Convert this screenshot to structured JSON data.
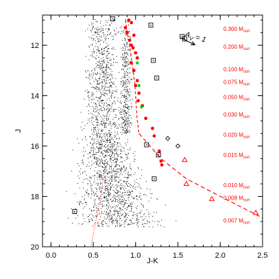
{
  "colors": {
    "field_stars": "#000000",
    "members": "#ff0000",
    "green": "#00cc00",
    "isochrone": "#ff0000",
    "axes": "#000000"
  },
  "chart_data": {
    "type": "scatter",
    "title": "",
    "xlabel": "J-K",
    "ylabel": "J",
    "xlim": [
      -0.1,
      2.5
    ],
    "ylim": [
      20,
      10.8
    ],
    "y_inverted": true,
    "grid": false,
    "x_ticks": [
      "0.0",
      "0.5",
      "1.0",
      "1.5",
      "2.0",
      "2.5"
    ],
    "y_ticks": [
      "12",
      "14",
      "16",
      "18",
      "20"
    ],
    "field_stars": {
      "description_of_density": "dense black swarm, two main branches",
      "regions": [
        {
          "j": [
            10.9,
            13
          ],
          "x": [
            0.35,
            1.0
          ]
        },
        {
          "j": [
            13,
            16
          ],
          "x": [
            0.3,
            1.1
          ]
        },
        {
          "j": [
            16,
            18.8
          ],
          "x": [
            0.2,
            1.4
          ]
        },
        {
          "j": [
            18.8,
            19.2
          ],
          "x": [
            0.3,
            1.45
          ]
        }
      ]
    },
    "members_red": [
      {
        "x": 0.92,
        "y": 11.0
      },
      {
        "x": 0.95,
        "y": 11.1
      },
      {
        "x": 0.88,
        "y": 11.3
      },
      {
        "x": 0.9,
        "y": 11.5
      },
      {
        "x": 0.98,
        "y": 11.6
      },
      {
        "x": 0.93,
        "y": 11.8
      },
      {
        "x": 0.95,
        "y": 12.0
      },
      {
        "x": 0.97,
        "y": 12.1
      },
      {
        "x": 1.0,
        "y": 12.3
      },
      {
        "x": 1.02,
        "y": 12.5
      },
      {
        "x": 0.95,
        "y": 12.7
      },
      {
        "x": 0.98,
        "y": 13.0
      },
      {
        "x": 1.02,
        "y": 13.4
      },
      {
        "x": 1.0,
        "y": 13.6
      },
      {
        "x": 1.04,
        "y": 13.9
      },
      {
        "x": 1.03,
        "y": 14.2
      },
      {
        "x": 1.08,
        "y": 14.4
      },
      {
        "x": 1.12,
        "y": 14.9
      },
      {
        "x": 1.2,
        "y": 15.3
      },
      {
        "x": 1.22,
        "y": 15.6
      },
      {
        "x": 1.28,
        "y": 16.2
      },
      {
        "x": 1.3,
        "y": 16.6
      },
      {
        "x": 1.31,
        "y": 16.75
      }
    ],
    "members_green": [
      {
        "x": 1.02,
        "y": 12.7
      },
      {
        "x": 1.04,
        "y": 13.6
      },
      {
        "x": 1.07,
        "y": 14.45
      }
    ],
    "open_squares": [
      {
        "x": 0.73,
        "y": 10.95
      },
      {
        "x": 1.18,
        "y": 11.2
      },
      {
        "x": 1.55,
        "y": 11.65
      },
      {
        "x": 1.58,
        "y": 11.75
      },
      {
        "x": 1.21,
        "y": 12.6
      },
      {
        "x": 1.25,
        "y": 13.3
      },
      {
        "x": 1.13,
        "y": 15.95
      },
      {
        "x": 1.27,
        "y": 16.35
      },
      {
        "x": 1.22,
        "y": 17.3
      },
      {
        "x": 0.28,
        "y": 18.6
      }
    ],
    "open_diamonds": [
      {
        "x": 1.38,
        "y": 15.7
      },
      {
        "x": 1.5,
        "y": 16.0
      }
    ],
    "open_triangles": [
      {
        "x": 1.58,
        "y": 16.55
      },
      {
        "x": 1.6,
        "y": 17.5
      },
      {
        "x": 1.9,
        "y": 18.1
      },
      {
        "x": 2.42,
        "y": 18.65
      }
    ],
    "reddening_vector": {
      "label": "AV = 1",
      "label_text": "A",
      "label_sub": "V",
      "label_rest": " = 1",
      "from": {
        "x": 1.53,
        "y": 11.7
      },
      "to": {
        "x": 1.7,
        "y": 11.98
      }
    },
    "isochrone_main": [
      {
        "x": 0.88,
        "y": 11.0
      },
      {
        "x": 0.9,
        "y": 11.5
      },
      {
        "x": 0.93,
        "y": 12.0
      },
      {
        "x": 0.95,
        "y": 12.5
      },
      {
        "x": 0.97,
        "y": 13.0
      },
      {
        "x": 0.99,
        "y": 13.5
      },
      {
        "x": 1.0,
        "y": 14.0
      },
      {
        "x": 1.01,
        "y": 14.5
      },
      {
        "x": 1.02,
        "y": 15.0
      },
      {
        "x": 1.04,
        "y": 15.5
      }
    ],
    "isochrone_dashed": [
      {
        "x": 1.04,
        "y": 15.5
      },
      {
        "x": 1.3,
        "y": 16.5
      },
      {
        "x": 1.6,
        "y": 17.3
      },
      {
        "x": 2.0,
        "y": 18.0
      },
      {
        "x": 2.5,
        "y": 18.85
      }
    ],
    "isochrone_dotted": [
      {
        "x": 0.64,
        "y": 16.6
      },
      {
        "x": 0.62,
        "y": 17.2
      },
      {
        "x": 0.59,
        "y": 18.0
      },
      {
        "x": 0.54,
        "y": 18.8
      },
      {
        "x": 0.5,
        "y": 19.5
      },
      {
        "x": 0.47,
        "y": 20.0
      }
    ],
    "mass_labels": [
      {
        "value": "0.300",
        "y": 11.35
      },
      {
        "value": "0.200",
        "y": 12.05
      },
      {
        "value": "0.100",
        "y": 12.95
      },
      {
        "value": "0.075",
        "y": 13.45
      },
      {
        "value": "0.050",
        "y": 14.05
      },
      {
        "value": "0.030",
        "y": 14.75
      },
      {
        "value": "0.020",
        "y": 15.55
      },
      {
        "value": "0.015",
        "y": 16.35
      },
      {
        "value": "0.010",
        "y": 17.55
      },
      {
        "value": "0.008",
        "y": 18.05
      },
      {
        "value": "0.007",
        "y": 18.95
      }
    ],
    "mass_unit": "M",
    "mass_unit_sub": "sun"
  }
}
